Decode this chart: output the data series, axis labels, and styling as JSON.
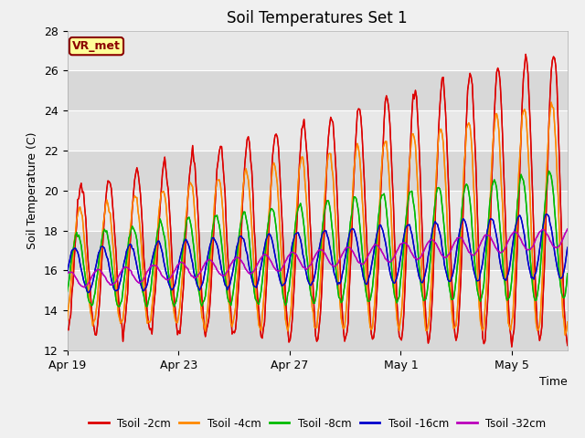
{
  "title": "Soil Temperatures Set 1",
  "xlabel": "Time",
  "ylabel": "Soil Temperature (C)",
  "ylim": [
    12,
    28
  ],
  "yticks": [
    12,
    14,
    16,
    18,
    20,
    22,
    24,
    26,
    28
  ],
  "background_color": "#f0f0f0",
  "plot_bg_color": "#e0e0e0",
  "annotation_text": "VR_met",
  "annotation_bg": "#ffff99",
  "annotation_border": "#8b0000",
  "annotation_text_color": "#8b0000",
  "series": [
    {
      "label": "Tsoil -2cm",
      "color": "#dd0000"
    },
    {
      "label": "Tsoil -4cm",
      "color": "#ff8800"
    },
    {
      "label": "Tsoil -8cm",
      "color": "#00bb00"
    },
    {
      "label": "Tsoil -16cm",
      "color": "#0000cc"
    },
    {
      "label": "Tsoil -32cm",
      "color": "#bb00bb"
    }
  ],
  "xtick_labels": [
    "Apr 19",
    "Apr 23",
    "Apr 27",
    "May 1",
    "May 5"
  ],
  "xtick_positions": [
    0,
    4,
    8,
    12,
    16
  ]
}
